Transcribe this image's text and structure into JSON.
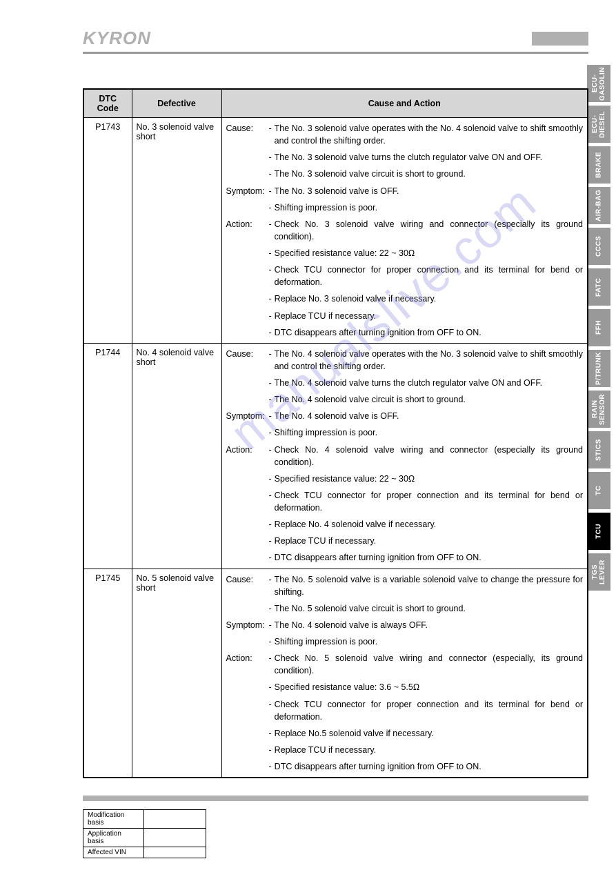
{
  "header": {
    "logo": "KYRON"
  },
  "table": {
    "headers": {
      "code": "DTC Code",
      "defective": "Defective",
      "cause": "Cause and Action"
    },
    "labels": {
      "cause": "Cause:",
      "symptom": "Symptom:",
      "action": "Action:"
    },
    "rows": [
      {
        "code": "P1743",
        "defective": "No. 3 solenoid valve short",
        "cause": [
          "The No. 3 solenoid valve operates with the No. 4 solenoid valve to shift smoothly and control the shifting order.",
          "The No. 3 solenoid valve turns the clutch regulator valve ON and OFF.",
          "The No. 3 solenoid valve circuit is short to ground."
        ],
        "symptom": [
          "The No. 3 solenoid valve is OFF.",
          "Shifting impression is poor."
        ],
        "action": [
          "Check No. 3 solenoid valve wiring and connector (especially its ground condition).",
          "Specified resistance value: 22 ~ 30Ω",
          "Check TCU connector for proper connection and its terminal for bend or deformation.",
          "Replace No. 3 solenoid valve if necessary.",
          "Replace TCU if necessary.",
          "DTC disappears after turning ignition from OFF to ON."
        ]
      },
      {
        "code": "P1744",
        "defective": "No. 4 solenoid valve short",
        "cause": [
          "The No. 4 solenoid valve operates with the No. 3 solenoid valve to shift smoothly and control the shifting order.",
          "The No. 4 solenoid valve turns the clutch regulator valve ON and OFF.",
          "The No. 4 solenoid valve circuit is short to ground."
        ],
        "symptom": [
          "The No. 4 solenoid valve is OFF.",
          "Shifting impression is poor."
        ],
        "action": [
          "Check No. 4 solenoid valve wiring and connector (especially its ground condition).",
          "Specified resistance value: 22 ~ 30Ω",
          "Check TCU connector for proper connection and its terminal for bend or deformation.",
          "Replace No. 4 solenoid valve if necessary.",
          "Replace TCU if necessary.",
          "DTC disappears after turning ignition from OFF to ON."
        ]
      },
      {
        "code": "P1745",
        "defective": "No. 5 solenoid valve short",
        "cause": [
          "The No. 5 solenoid valve is a variable solenoid valve to change the pressure for shifting.",
          "The No. 5 solenoid valve circuit is short to ground."
        ],
        "symptom": [
          "The No. 4 solenoid valve is always OFF.",
          "Shifting impression is poor."
        ],
        "action": [
          "Check No. 5 solenoid valve wiring and connector (especially, its ground condition).",
          "Specified resistance value: 3.6 ~ 5.5Ω",
          "Check TCU connector for proper connection and its terminal for bend or deformation.",
          "Replace No.5 solenoid valve if necessary.",
          "Replace TCU if necessary.",
          "DTC disappears after turning ignition from OFF to ON."
        ]
      }
    ]
  },
  "mod_table": {
    "rows": [
      {
        "label": "Modification basis",
        "value": ""
      },
      {
        "label": "Application basis",
        "value": ""
      },
      {
        "label": "Affected VIN",
        "value": ""
      }
    ]
  },
  "tabs": [
    {
      "label": "ECU-\nGASOLIN",
      "active": false
    },
    {
      "label": "ECU-\nDIESEL",
      "active": false
    },
    {
      "label": "BRAKE",
      "active": false
    },
    {
      "label": "AIR-BAG",
      "active": false
    },
    {
      "label": "CCCS",
      "active": false
    },
    {
      "label": "FATC",
      "active": false
    },
    {
      "label": "FFH",
      "active": false
    },
    {
      "label": "P/TRUNK",
      "active": false
    },
    {
      "label": "RAIN\nSENSOR",
      "active": false
    },
    {
      "label": "STICS",
      "active": false
    },
    {
      "label": "TC",
      "active": false
    },
    {
      "label": "TCU",
      "active": true
    },
    {
      "label": "TGS\nLEVER",
      "active": false
    }
  ],
  "watermark": "manualslive.com"
}
